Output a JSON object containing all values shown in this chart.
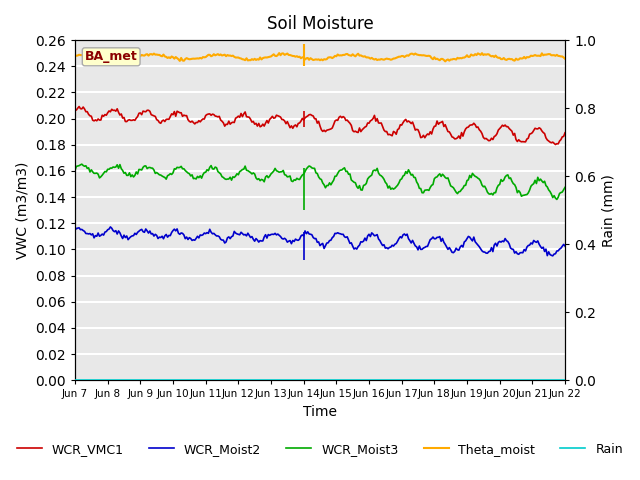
{
  "title": "Soil Moisture",
  "ylabel_left": "VWC (m3/m3)",
  "ylabel_right": "Rain (mm)",
  "xlabel": "Time",
  "ylim_left": [
    0.0,
    0.26
  ],
  "ylim_right": [
    0.0,
    1.0
  ],
  "xlim": [
    0,
    360
  ],
  "xtick_labels": [
    "Jun 7",
    "Jun 8",
    "Jun 9",
    "Jun 10",
    "Jun 11",
    "Jun 12",
    "Jun 13",
    "Jun 14",
    "Jun 15",
    "Jun 16",
    "Jun 17",
    "Jun 18",
    "Jun 19",
    "Jun 20",
    "Jun 21",
    "Jun 22"
  ],
  "xtick_positions": [
    0,
    24,
    48,
    72,
    96,
    120,
    144,
    168,
    192,
    216,
    240,
    264,
    288,
    312,
    336,
    360
  ],
  "annotation_label": "BA_met",
  "background_color": "#e8e8e8",
  "grid_color": "#ffffff",
  "colors": {
    "WCR_VMC1": "#cc0000",
    "WCR_Moist2": "#0000cc",
    "WCR_Moist3": "#00aa00",
    "Theta_moist": "#ffaa00",
    "Rain": "#00cccc"
  },
  "rain_event_hour": 168,
  "num_points": 361
}
